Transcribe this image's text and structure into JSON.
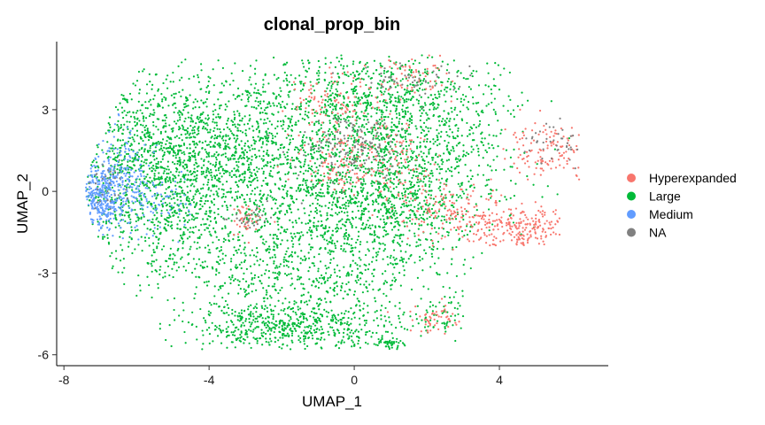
{
  "chart_data": {
    "type": "scatter",
    "title": "clonal_prop_bin",
    "xlabel": "UMAP_1",
    "ylabel": "UMAP_2",
    "xlim": [
      -8.2,
      7.0
    ],
    "ylim": [
      -6.4,
      5.5
    ],
    "xticks": [
      -8,
      -4,
      0,
      4
    ],
    "yticks": [
      -6,
      -3,
      0,
      3
    ],
    "grid": false,
    "legend_position": "right",
    "series": [
      {
        "name": "Hyperexpanded",
        "color": "#F8766D"
      },
      {
        "name": "Large",
        "color": "#00BA38"
      },
      {
        "name": "Medium",
        "color": "#619CFF"
      },
      {
        "name": "NA",
        "color": "#808080"
      }
    ],
    "regions": [
      {
        "series": "Large",
        "cx": -3.0,
        "cy": 1.5,
        "sx": 2.3,
        "sy": 1.6,
        "n": 1500
      },
      {
        "series": "Large",
        "cx": -5.5,
        "cy": 0.5,
        "sx": 1.2,
        "sy": 1.8,
        "n": 900
      },
      {
        "series": "Large",
        "cx": -1.5,
        "cy": -2.5,
        "sx": 1.9,
        "sy": 1.6,
        "n": 1000
      },
      {
        "series": "Large",
        "cx": 0.8,
        "cy": 3.2,
        "sx": 1.5,
        "sy": 1.1,
        "n": 700
      },
      {
        "series": "Large",
        "cx": 1.0,
        "cy": -0.3,
        "sx": 1.2,
        "sy": 1.2,
        "n": 700
      },
      {
        "series": "Large",
        "cx": -1.8,
        "cy": -5.0,
        "sx": 1.3,
        "sy": 0.45,
        "n": 450
      },
      {
        "series": "Large",
        "cx": 2.2,
        "cy": 1.5,
        "sx": 1.3,
        "sy": 1.7,
        "n": 350
      },
      {
        "series": "Large",
        "cx": 0.9,
        "cy": -5.6,
        "sx": 0.2,
        "sy": 0.15,
        "n": 50
      },
      {
        "series": "Large",
        "cx": 2.5,
        "cy": -4.5,
        "sx": 0.5,
        "sy": 0.4,
        "n": 60
      },
      {
        "series": "Medium",
        "cx": -7.0,
        "cy": -0.2,
        "sx": 0.35,
        "sy": 0.55,
        "n": 300
      },
      {
        "series": "Medium",
        "cx": -6.4,
        "cy": 0.7,
        "sx": 0.45,
        "sy": 0.7,
        "n": 150
      },
      {
        "series": "Medium",
        "cx": -5.6,
        "cy": -0.6,
        "sx": 0.6,
        "sy": 0.5,
        "n": 90
      },
      {
        "series": "Hyperexpanded",
        "cx": 4.5,
        "cy": -1.3,
        "sx": 0.8,
        "sy": 0.35,
        "n": 220
      },
      {
        "series": "Hyperexpanded",
        "cx": 5.3,
        "cy": 1.5,
        "sx": 0.6,
        "sy": 0.5,
        "n": 120
      },
      {
        "series": "Hyperexpanded",
        "cx": 0.3,
        "cy": 1.2,
        "sx": 0.9,
        "sy": 0.6,
        "n": 200
      },
      {
        "series": "Hyperexpanded",
        "cx": 2.5,
        "cy": -0.7,
        "sx": 0.8,
        "sy": 0.5,
        "n": 150
      },
      {
        "series": "Hyperexpanded",
        "cx": -0.5,
        "cy": 3.3,
        "sx": 0.6,
        "sy": 0.5,
        "n": 90
      },
      {
        "series": "Hyperexpanded",
        "cx": 2.3,
        "cy": -4.7,
        "sx": 0.5,
        "sy": 0.3,
        "n": 50
      },
      {
        "series": "Hyperexpanded",
        "cx": -3.0,
        "cy": -1.0,
        "sx": 0.3,
        "sy": 0.3,
        "n": 40
      },
      {
        "series": "Hyperexpanded",
        "cx": 1.5,
        "cy": 4.2,
        "sx": 0.6,
        "sy": 0.4,
        "n": 60
      },
      {
        "series": "NA",
        "cx": 0.0,
        "cy": 1.5,
        "sx": 0.8,
        "sy": 0.6,
        "n": 140
      },
      {
        "series": "NA",
        "cx": 1.5,
        "cy": 4.0,
        "sx": 0.7,
        "sy": 0.4,
        "n": 50
      },
      {
        "series": "NA",
        "cx": -3.0,
        "cy": -1.0,
        "sx": 0.3,
        "sy": 0.25,
        "n": 30
      },
      {
        "series": "NA",
        "cx": 5.5,
        "cy": 1.8,
        "sx": 0.5,
        "sy": 0.4,
        "n": 40
      },
      {
        "series": "NA",
        "cx": -6.8,
        "cy": 0.2,
        "sx": 0.3,
        "sy": 0.4,
        "n": 30
      }
    ]
  }
}
